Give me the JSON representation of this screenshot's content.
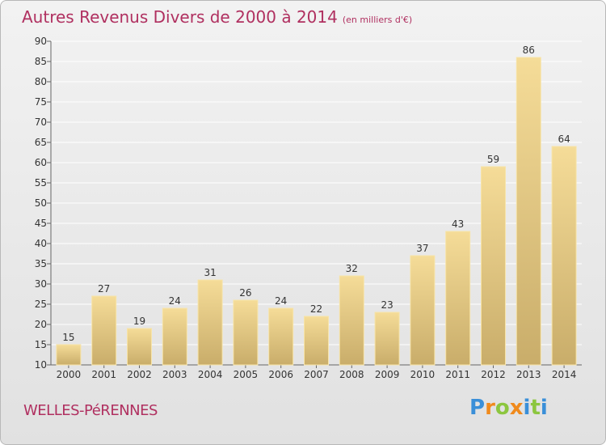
{
  "header": {
    "title": "Autres Revenus Divers de 2000 à 2014",
    "subtitle": "(en milliers d'€)"
  },
  "footer": {
    "commune": "WELLES-PéRENNES",
    "logo_letters": [
      {
        "ch": "P",
        "color": "#3a8fd8"
      },
      {
        "ch": "r",
        "color": "#f08a1c"
      },
      {
        "ch": "o",
        "color": "#8cc63f"
      },
      {
        "ch": "x",
        "color": "#f08a1c"
      },
      {
        "ch": "i",
        "color": "#3a8fd8"
      },
      {
        "ch": "t",
        "color": "#8cc63f"
      },
      {
        "ch": "i",
        "color": "#3a8fd8"
      }
    ]
  },
  "colors": {
    "title": "#b03060",
    "bar_light": "#f5dc98",
    "bar_dark": "#c9ad6a",
    "grid": "#ffffff"
  },
  "chart_data": {
    "type": "bar",
    "title": "Autres Revenus Divers de 2000 à 2014",
    "subtitle": "(en milliers d'€)",
    "categories": [
      "2000",
      "2001",
      "2002",
      "2003",
      "2004",
      "2005",
      "2006",
      "2007",
      "2008",
      "2009",
      "2010",
      "2011",
      "2012",
      "2013",
      "2014"
    ],
    "values": [
      15,
      27,
      19,
      24,
      31,
      26,
      24,
      22,
      32,
      23,
      37,
      43,
      59,
      86,
      64
    ],
    "ylim": [
      10,
      90
    ],
    "yticks": [
      10,
      15,
      20,
      25,
      30,
      35,
      40,
      45,
      50,
      55,
      60,
      65,
      70,
      75,
      80,
      85,
      90
    ],
    "grid": true,
    "legend": "none"
  }
}
